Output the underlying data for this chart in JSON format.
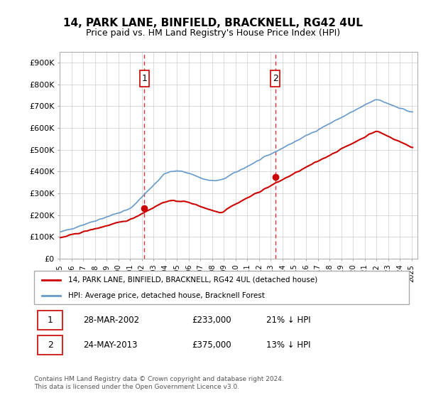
{
  "title": "14, PARK LANE, BINFIELD, BRACKNELL, RG42 4UL",
  "subtitle": "Price paid vs. HM Land Registry's House Price Index (HPI)",
  "ylabel_ticks": [
    "£0",
    "£100K",
    "£200K",
    "£300K",
    "£400K",
    "£500K",
    "£600K",
    "£700K",
    "£800K",
    "£900K"
  ],
  "ytick_values": [
    0,
    100000,
    200000,
    300000,
    400000,
    500000,
    600000,
    700000,
    800000,
    900000
  ],
  "ylim": [
    0,
    950000
  ],
  "xlim_start": 1995.0,
  "xlim_end": 2025.5,
  "sale1_date": 2002.23,
  "sale1_price": 233000,
  "sale1_label": "1",
  "sale2_date": 2013.38,
  "sale2_price": 375000,
  "sale2_label": "2",
  "property_line_color": "#cc0000",
  "hpi_line_color": "#6699cc",
  "vline_color": "#cc0000",
  "marker_color": "#cc0000",
  "legend_property": "14, PARK LANE, BINFIELD, BRACKNELL, RG42 4UL (detached house)",
  "legend_hpi": "HPI: Average price, detached house, Bracknell Forest",
  "table_row1": [
    "1",
    "28-MAR-2002",
    "£233,000",
    "21% ↓ HPI"
  ],
  "table_row2": [
    "2",
    "24-MAY-2013",
    "£375,000",
    "13% ↓ HPI"
  ],
  "footnote": "Contains HM Land Registry data © Crown copyright and database right 2024.\nThis data is licensed under the Open Government Licence v3.0.",
  "background_color": "#ffffff",
  "grid_color": "#cccccc"
}
